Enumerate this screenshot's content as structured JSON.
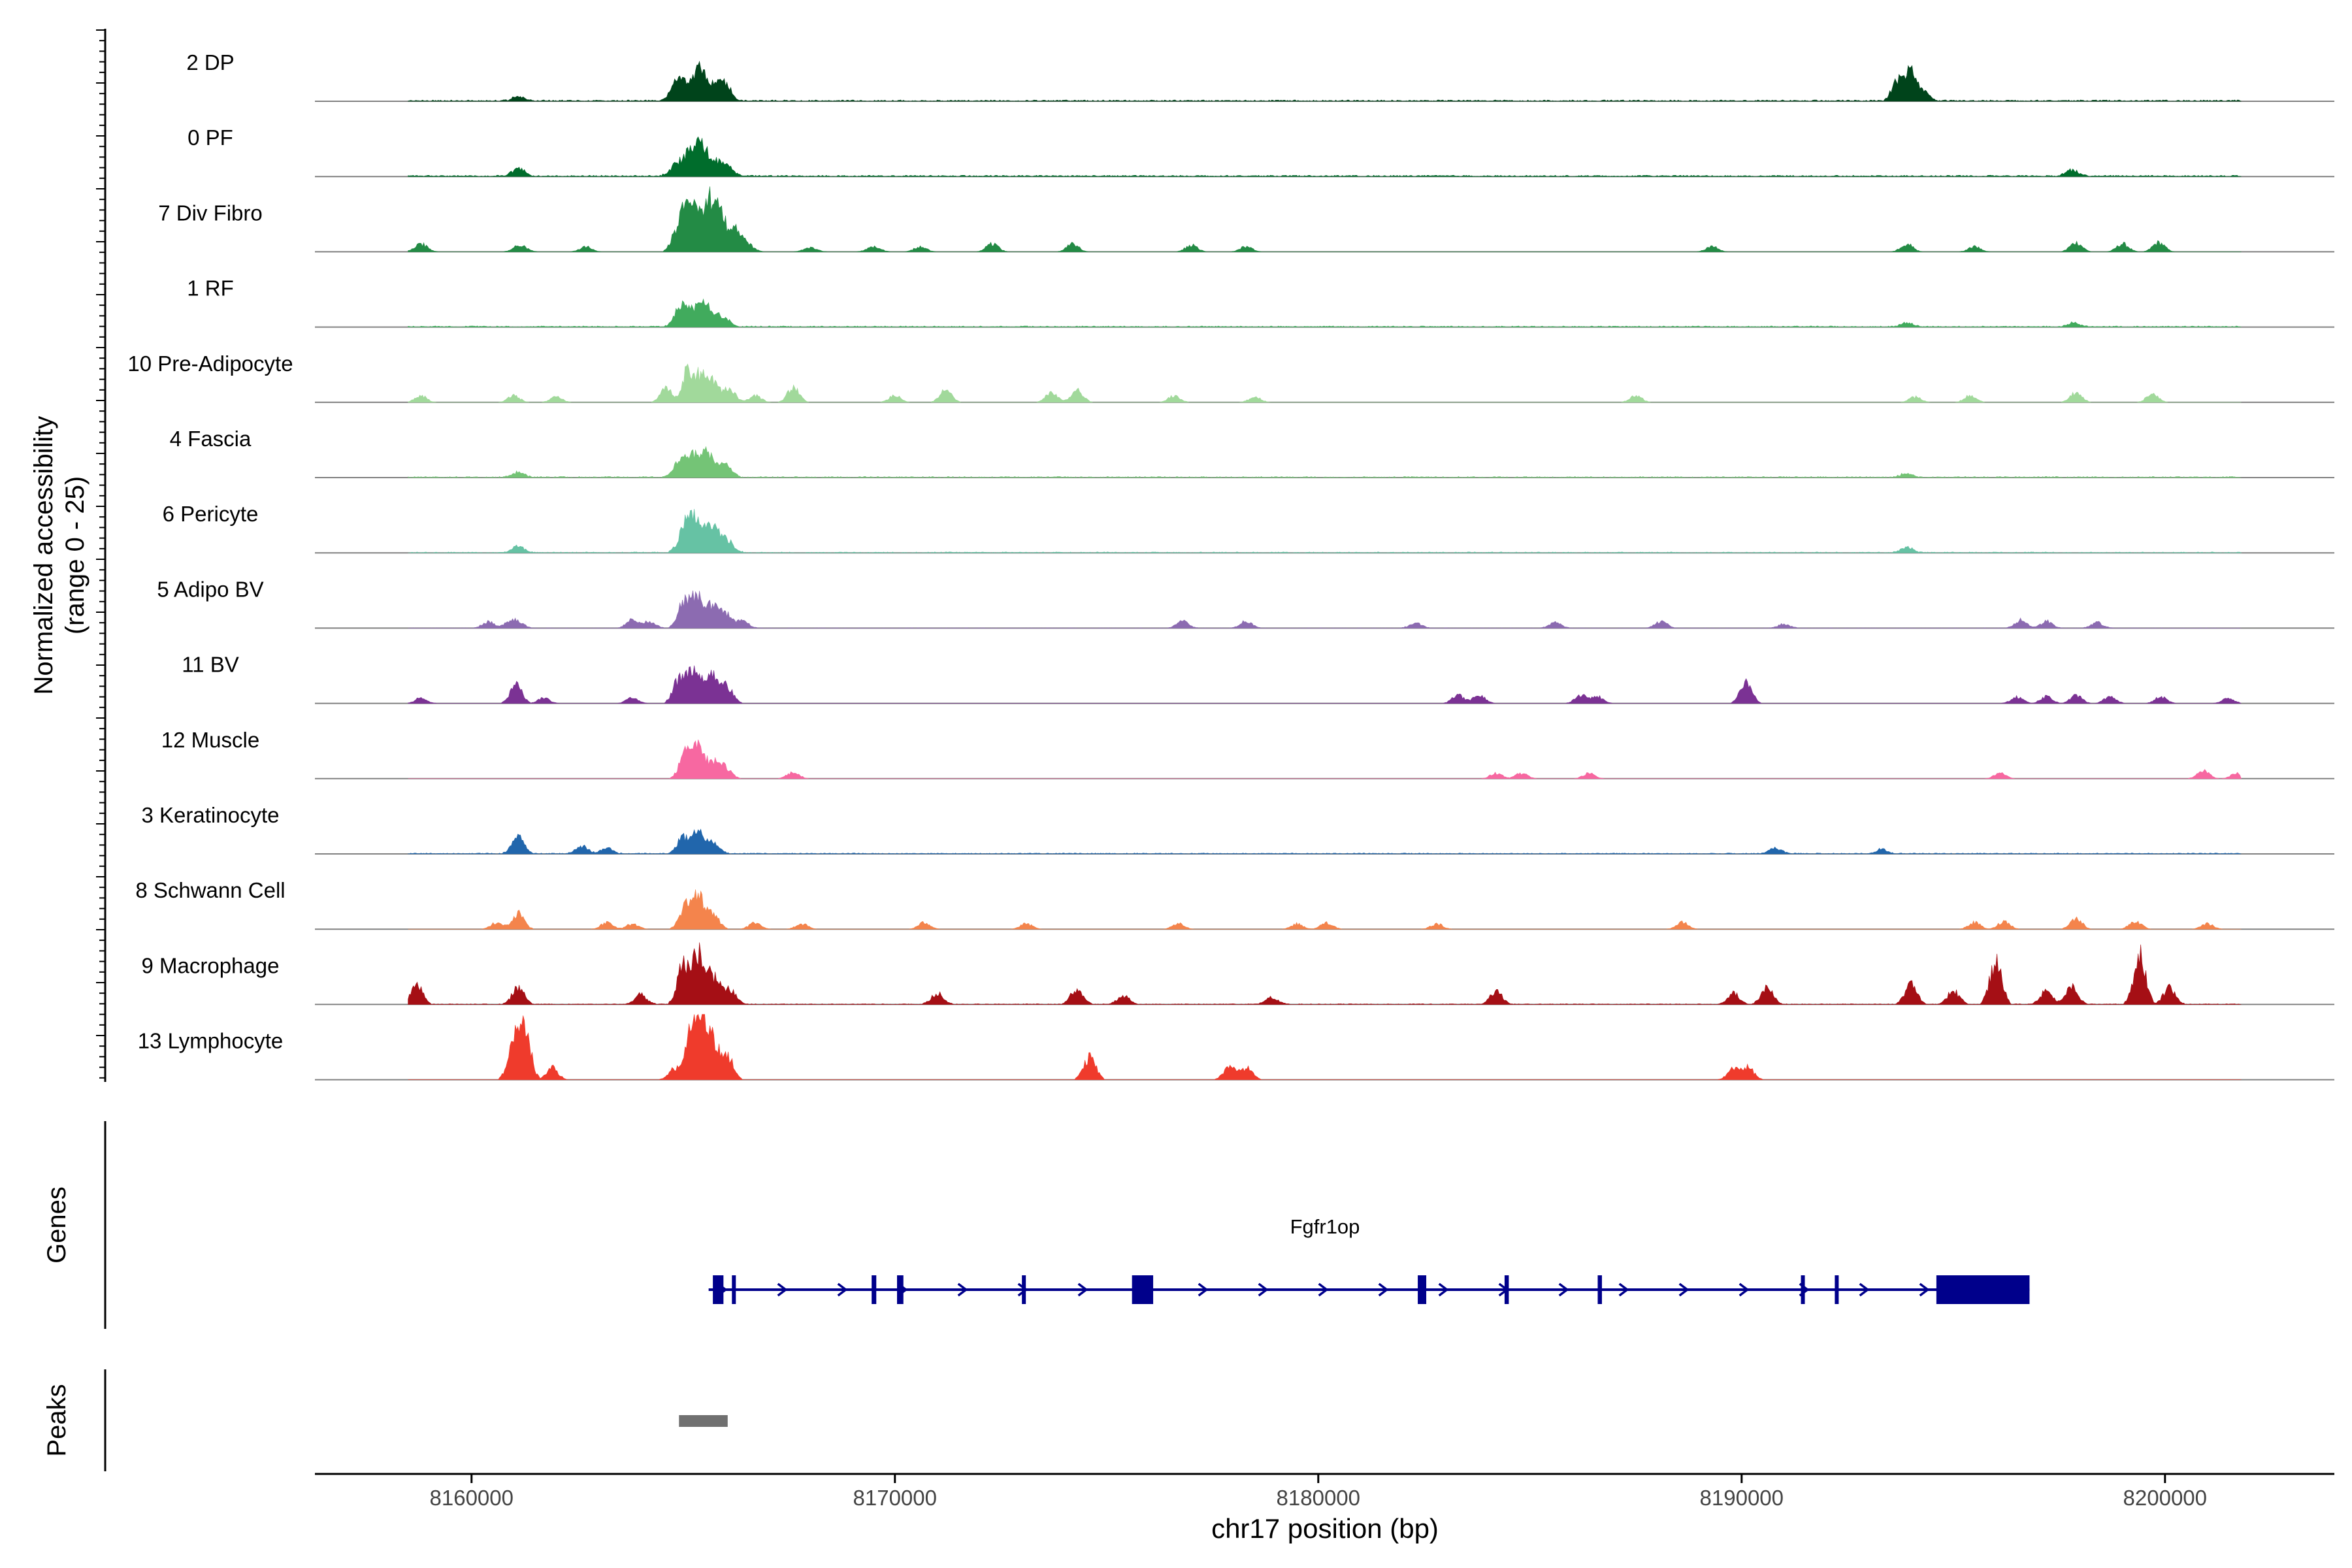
{
  "chart_data": {
    "type": "area",
    "title": "",
    "ylabel_line1": "Normalized accessibility",
    "ylabel_line2": "(range 0 - 25)",
    "xlabel": "chr17 position (bp)",
    "xlim": [
      8156300,
      8204000
    ],
    "xticks": [
      8160000,
      8170000,
      8180000,
      8190000,
      8200000
    ],
    "xtick_labels": [
      "8160000",
      "8170000",
      "8180000",
      "8190000",
      "8200000"
    ],
    "ylim": [
      0,
      25
    ],
    "track_start": 8158500,
    "track_end": 8201800,
    "tracks": [
      {
        "name": "2 DP",
        "color": "#00441b",
        "noise": 0.35,
        "density": 0.9,
        "peaks": [
          [
            8164800,
            1.0,
            8
          ],
          [
            8165100,
            1.2,
            11
          ],
          [
            8165400,
            0.9,
            25
          ],
          [
            8165800,
            1.2,
            14
          ],
          [
            8166050,
            0.8,
            7
          ],
          [
            8164900,
            0.8,
            6
          ],
          [
            8193700,
            1.0,
            16
          ],
          [
            8194000,
            0.9,
            22
          ],
          [
            8194300,
            0.9,
            7
          ],
          [
            8161100,
            1.0,
            3
          ]
        ]
      },
      {
        "name": "0 PF",
        "color": "#006d2c",
        "noise": 0.35,
        "density": 0.9,
        "peaks": [
          [
            8164800,
            1.0,
            7
          ],
          [
            8165150,
            1.2,
            17
          ],
          [
            8165450,
            1.0,
            20
          ],
          [
            8165800,
            1.1,
            11
          ],
          [
            8166100,
            0.8,
            6
          ],
          [
            8161100,
            1.0,
            6
          ],
          [
            8197800,
            1.0,
            5
          ]
        ]
      },
      {
        "name": "7 Div Fibro",
        "color": "#238b45",
        "noise": 0.0,
        "density": 0.0,
        "peaks": [
          [
            8164950,
            1.2,
            24
          ],
          [
            8165200,
            1.0,
            28
          ],
          [
            8165600,
            1.2,
            40
          ],
          [
            8165900,
            1.0,
            25
          ],
          [
            8166250,
            0.9,
            14
          ],
          [
            8158800,
            1.1,
            6
          ],
          [
            8161150,
            1.1,
            5
          ],
          [
            8162700,
            1.0,
            4
          ],
          [
            8166500,
            1.1,
            6
          ],
          [
            8168000,
            1.1,
            3
          ],
          [
            8169500,
            1.1,
            4
          ],
          [
            8170600,
            1.0,
            4
          ],
          [
            8172300,
            1.0,
            6
          ],
          [
            8174200,
            1.0,
            6
          ],
          [
            8177000,
            1.0,
            5
          ],
          [
            8178300,
            1.0,
            4
          ],
          [
            8189300,
            1.0,
            4
          ],
          [
            8193900,
            1.0,
            6
          ],
          [
            8195500,
            1.0,
            4
          ],
          [
            8197900,
            1.0,
            7
          ],
          [
            8199000,
            1.0,
            6
          ],
          [
            8199850,
            1.0,
            7
          ]
        ]
      },
      {
        "name": "1 RF",
        "color": "#41ab5d",
        "noise": 0.3,
        "density": 0.8,
        "peaks": [
          [
            8164900,
            1.0,
            10
          ],
          [
            8165150,
            1.2,
            14
          ],
          [
            8165500,
            1.0,
            17
          ],
          [
            8165900,
            1.2,
            9
          ],
          [
            8197850,
            1.0,
            3
          ],
          [
            8193900,
            1.0,
            3
          ]
        ]
      },
      {
        "name": "10 Pre-Adipocyte",
        "color": "#a1d99b",
        "noise": 0.0,
        "density": 0.0,
        "peaks": [
          [
            8165100,
            0.8,
            26
          ],
          [
            8165400,
            0.9,
            20
          ],
          [
            8165700,
            1.0,
            16
          ],
          [
            8166100,
            1.0,
            10
          ],
          [
            8164600,
            1.0,
            10
          ],
          [
            8158800,
            1.0,
            5
          ],
          [
            8161000,
            1.0,
            5
          ],
          [
            8162000,
            1.0,
            4
          ],
          [
            8166700,
            1.0,
            5
          ],
          [
            8167600,
            1.0,
            11
          ],
          [
            8170000,
            1.0,
            5
          ],
          [
            8171200,
            1.0,
            9
          ],
          [
            8173700,
            1.0,
            7
          ],
          [
            8174300,
            1.0,
            9
          ],
          [
            8176600,
            1.0,
            5
          ],
          [
            8178500,
            1.0,
            4
          ],
          [
            8187500,
            1.0,
            5
          ],
          [
            8194100,
            1.0,
            4
          ],
          [
            8195400,
            1.0,
            5
          ],
          [
            8197900,
            1.0,
            7
          ],
          [
            8199700,
            1.0,
            6
          ]
        ]
      },
      {
        "name": "4 Fascia",
        "color": "#74c476",
        "noise": 0.3,
        "density": 0.8,
        "peaks": [
          [
            8164900,
            1.0,
            10
          ],
          [
            8165200,
            1.1,
            16
          ],
          [
            8165550,
            1.0,
            19
          ],
          [
            8165950,
            1.2,
            10
          ],
          [
            8161100,
            1.0,
            4
          ],
          [
            8193900,
            1.0,
            3
          ]
        ]
      },
      {
        "name": "6 Pericyte",
        "color": "#66c2a4",
        "noise": 0.25,
        "density": 0.7,
        "peaks": [
          [
            8165000,
            1.0,
            14
          ],
          [
            8165250,
            1.1,
            24
          ],
          [
            8165650,
            1.1,
            19
          ],
          [
            8166000,
            1.2,
            10
          ],
          [
            8161100,
            1.0,
            5
          ],
          [
            8193900,
            1.0,
            4
          ]
        ]
      },
      {
        "name": "5 Adipo BV",
        "color": "#8c6bb1",
        "noise": 0.1,
        "density": 0.5,
        "peaks": [
          [
            8165000,
            1.0,
            18
          ],
          [
            8165300,
            1.0,
            25
          ],
          [
            8165700,
            1.1,
            17
          ],
          [
            8166000,
            1.0,
            10
          ],
          [
            8166400,
            1.0,
            6
          ],
          [
            8161000,
            1.2,
            7
          ],
          [
            8160400,
            1.0,
            5
          ],
          [
            8163800,
            1.0,
            6
          ],
          [
            8164200,
            1.0,
            5
          ],
          [
            8176800,
            1.0,
            5
          ],
          [
            8178300,
            1.0,
            5
          ],
          [
            8182300,
            1.0,
            4
          ],
          [
            8185600,
            1.0,
            4
          ],
          [
            8188100,
            1.0,
            5
          ],
          [
            8191000,
            1.0,
            3
          ],
          [
            8196600,
            1.0,
            6
          ],
          [
            8197200,
            1.0,
            5
          ],
          [
            8198400,
            1.0,
            4
          ]
        ]
      },
      {
        "name": "11 BV",
        "color": "#7b3294",
        "noise": 0.0,
        "density": 0.0,
        "peaks": [
          [
            8164900,
            1.0,
            18
          ],
          [
            8165250,
            1.0,
            28
          ],
          [
            8165650,
            1.0,
            22
          ],
          [
            8166000,
            1.1,
            14
          ],
          [
            8161050,
            1.0,
            14
          ],
          [
            8158800,
            1.0,
            4
          ],
          [
            8161700,
            1.0,
            4
          ],
          [
            8163800,
            1.0,
            4
          ],
          [
            8183300,
            1.0,
            6
          ],
          [
            8183800,
            1.0,
            7
          ],
          [
            8186200,
            1.0,
            6
          ],
          [
            8186600,
            1.0,
            5
          ],
          [
            8190100,
            1.0,
            16
          ],
          [
            8196500,
            1.0,
            5
          ],
          [
            8197200,
            1.0,
            5
          ],
          [
            8197900,
            1.0,
            6
          ],
          [
            8198700,
            1.0,
            5
          ],
          [
            8199900,
            1.0,
            5
          ],
          [
            8201500,
            1.0,
            4
          ]
        ]
      },
      {
        "name": "12 Muscle",
        "color": "#f768a1",
        "noise": 0.0,
        "density": 0.0,
        "peaks": [
          [
            8165050,
            1.0,
            18
          ],
          [
            8165350,
            1.0,
            22
          ],
          [
            8165700,
            1.0,
            13
          ],
          [
            8166000,
            1.0,
            8
          ],
          [
            8167600,
            1.0,
            5
          ],
          [
            8184200,
            1.0,
            4
          ],
          [
            8184800,
            1.0,
            4
          ],
          [
            8186400,
            1.0,
            4
          ],
          [
            8196100,
            1.0,
            4
          ],
          [
            8200900,
            1.0,
            6
          ],
          [
            8201700,
            1.0,
            4
          ]
        ]
      },
      {
        "name": "3 Keratinocyte",
        "color": "#2166ac",
        "noise": 0.25,
        "density": 0.85,
        "peaks": [
          [
            8165000,
            1.0,
            12
          ],
          [
            8165350,
            1.0,
            16
          ],
          [
            8165700,
            1.1,
            8
          ],
          [
            8161100,
            1.0,
            12
          ],
          [
            8162600,
            1.0,
            6
          ],
          [
            8163200,
            1.0,
            4
          ],
          [
            8190800,
            1.0,
            4
          ],
          [
            8193300,
            1.0,
            3
          ]
        ]
      },
      {
        "name": "8 Schwann Cell",
        "color": "#f4844c",
        "noise": 0.0,
        "density": 0.0,
        "peaks": [
          [
            8165050,
            1.0,
            16
          ],
          [
            8165350,
            1.0,
            24
          ],
          [
            8165700,
            1.0,
            12
          ],
          [
            8161100,
            1.0,
            12
          ],
          [
            8160600,
            1.0,
            5
          ],
          [
            8163200,
            1.0,
            5
          ],
          [
            8163800,
            1.0,
            4
          ],
          [
            8166700,
            1.0,
            5
          ],
          [
            8167800,
            1.0,
            4
          ],
          [
            8170700,
            1.0,
            5
          ],
          [
            8173100,
            1.0,
            4
          ],
          [
            8176700,
            1.0,
            4
          ],
          [
            8179500,
            1.0,
            4
          ],
          [
            8180200,
            1.0,
            5
          ],
          [
            8182800,
            1.0,
            4
          ],
          [
            8188600,
            1.0,
            5
          ],
          [
            8195500,
            1.0,
            5
          ],
          [
            8196200,
            1.0,
            6
          ],
          [
            8197900,
            1.0,
            8
          ],
          [
            8199300,
            1.0,
            6
          ],
          [
            8201000,
            1.0,
            4
          ]
        ]
      },
      {
        "name": "9 Macrophage",
        "color": "#a50f15",
        "noise": 0.2,
        "density": 0.75,
        "peaks": [
          [
            8165000,
            1.0,
            28
          ],
          [
            8165350,
            1.0,
            36
          ],
          [
            8165700,
            1.1,
            22
          ],
          [
            8166100,
            1.0,
            12
          ],
          [
            8158700,
            1.0,
            14
          ],
          [
            8161100,
            1.0,
            12
          ],
          [
            8164000,
            1.0,
            7
          ],
          [
            8171000,
            1.0,
            8
          ],
          [
            8174300,
            1.0,
            12
          ],
          [
            8175400,
            1.0,
            6
          ],
          [
            8178900,
            1.0,
            5
          ],
          [
            8184200,
            1.0,
            10
          ],
          [
            8189800,
            1.0,
            8
          ],
          [
            8190600,
            1.0,
            12
          ],
          [
            8194000,
            1.0,
            16
          ],
          [
            8195000,
            1.0,
            10
          ],
          [
            8196000,
            1.0,
            32
          ],
          [
            8197200,
            1.0,
            10
          ],
          [
            8197800,
            1.0,
            14
          ],
          [
            8199400,
            1.0,
            36
          ],
          [
            8200100,
            1.0,
            12
          ]
        ]
      },
      {
        "name": "13 Lymphocyte",
        "color": "#ef3b2c",
        "noise": 0.0,
        "density": 0.0,
        "peaks": [
          [
            8161000,
            1.0,
            26
          ],
          [
            8161250,
            1.0,
            38
          ],
          [
            8161900,
            1.0,
            9
          ],
          [
            8164800,
            1.0,
            9
          ],
          [
            8165200,
            1.0,
            36
          ],
          [
            8165450,
            1.0,
            40
          ],
          [
            8165700,
            1.0,
            26
          ],
          [
            8166050,
            1.0,
            18
          ],
          [
            8174600,
            1.0,
            17
          ],
          [
            8177900,
            1.0,
            9
          ],
          [
            8178300,
            1.0,
            9
          ],
          [
            8189800,
            1.0,
            8
          ],
          [
            8190150,
            1.0,
            9
          ]
        ]
      }
    ],
    "genes_label": "Genes",
    "gene": {
      "name": "Fgfr1op",
      "start": 8165600,
      "end": 8196800,
      "strand": "+",
      "exons": [
        [
          8165700,
          8165950
        ],
        [
          8166150,
          8166240
        ],
        [
          8169450,
          8169560
        ],
        [
          8170050,
          8170200
        ],
        [
          8173000,
          8173090
        ],
        [
          8175600,
          8176100
        ],
        [
          8182350,
          8182550
        ],
        [
          8184400,
          8184500
        ],
        [
          8186600,
          8186700
        ],
        [
          8191400,
          8191480
        ],
        [
          8192200,
          8192290
        ],
        [
          8194600,
          8196800
        ]
      ]
    },
    "peaks_label": "Peaks",
    "peak_regions": [
      [
        8164900,
        8166050
      ]
    ]
  }
}
